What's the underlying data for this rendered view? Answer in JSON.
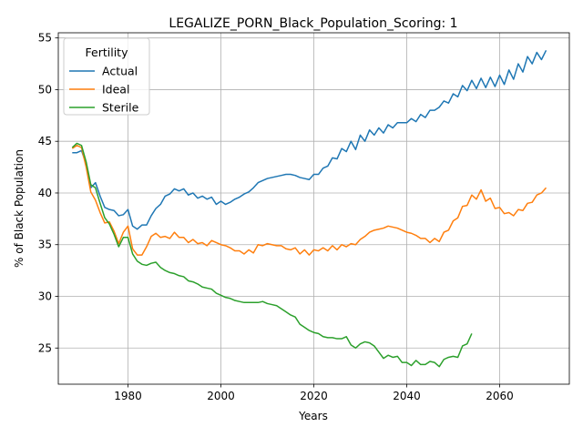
{
  "chart_data": {
    "type": "line",
    "title": "LEGALIZE_PORN_Black_Population_Scoring: 1",
    "xlabel": "Years",
    "ylabel": "% of Black Population",
    "xlim": [
      1965,
      2075
    ],
    "ylim": [
      21.5,
      55.5
    ],
    "xticks": [
      1980,
      2000,
      2020,
      2040,
      2060
    ],
    "yticks": [
      25,
      30,
      35,
      40,
      45,
      50,
      55
    ],
    "grid": true,
    "legend": {
      "title": "Fertility",
      "placement": "top-left"
    },
    "series": [
      {
        "name": "Actual",
        "color": "#1f77b4",
        "x": [
          1968,
          1969,
          1970,
          1971,
          1972,
          1973,
          1974,
          1975,
          1976,
          1977,
          1978,
          1979,
          1980,
          1981,
          1982,
          1983,
          1984,
          1985,
          1986,
          1987,
          1988,
          1989,
          1990,
          1991,
          1992,
          1993,
          1994,
          1995,
          1996,
          1997,
          1998,
          1999,
          2000,
          2001,
          2002,
          2003,
          2004,
          2005,
          2006,
          2007,
          2008,
          2009,
          2010,
          2011,
          2012,
          2013,
          2014,
          2015,
          2016,
          2017,
          2018,
          2019,
          2020,
          2021,
          2022,
          2023,
          2024,
          2025,
          2026,
          2027,
          2028,
          2029,
          2030,
          2031,
          2032,
          2033,
          2034,
          2035,
          2036,
          2037,
          2038,
          2039,
          2040,
          2041,
          2042,
          2043,
          2044,
          2045,
          2046,
          2047,
          2048,
          2049,
          2050,
          2051,
          2052,
          2053,
          2054,
          2055,
          2056,
          2057,
          2058,
          2059,
          2060,
          2061,
          2062,
          2063,
          2064,
          2065,
          2066,
          2067,
          2068,
          2069,
          2070
        ],
        "values": [
          43.9,
          43.9,
          44.1,
          42.8,
          40.5,
          41.0,
          39.7,
          38.6,
          38.4,
          38.3,
          37.8,
          37.9,
          38.4,
          36.8,
          36.5,
          36.9,
          36.9,
          37.8,
          38.5,
          38.9,
          39.7,
          39.9,
          40.4,
          40.2,
          40.4,
          39.8,
          40.0,
          39.5,
          39.7,
          39.4,
          39.6,
          38.9,
          39.2,
          38.9,
          39.1,
          39.4,
          39.6,
          39.9,
          40.1,
          40.5,
          41.0,
          41.2,
          41.4,
          41.5,
          41.6,
          41.7,
          41.8,
          41.8,
          41.7,
          41.5,
          41.4,
          41.3,
          41.8,
          41.8,
          42.4,
          42.6,
          43.4,
          43.3,
          44.3,
          44.0,
          45.0,
          44.2,
          45.6,
          45.0,
          46.1,
          45.6,
          46.3,
          45.8,
          46.6,
          46.3,
          46.8,
          46.8,
          46.8,
          47.2,
          46.9,
          47.6,
          47.3,
          48.0,
          48.0,
          48.3,
          48.9,
          48.7,
          49.6,
          49.3,
          50.4,
          49.9,
          50.9,
          50.1,
          51.1,
          50.2,
          51.2,
          50.3,
          51.4,
          50.5,
          51.9,
          51.0,
          52.5,
          51.7,
          53.2,
          52.5,
          53.6,
          52.9,
          53.8
        ]
      },
      {
        "name": "Ideal",
        "color": "#ff7f0e",
        "x": [
          1968,
          1969,
          1970,
          1971,
          1972,
          1973,
          1974,
          1975,
          1976,
          1977,
          1978,
          1979,
          1980,
          1981,
          1982,
          1983,
          1984,
          1985,
          1986,
          1987,
          1988,
          1989,
          1990,
          1991,
          1992,
          1993,
          1994,
          1995,
          1996,
          1997,
          1998,
          1999,
          2000,
          2001,
          2002,
          2003,
          2004,
          2005,
          2006,
          2007,
          2008,
          2009,
          2010,
          2011,
          2012,
          2013,
          2014,
          2015,
          2016,
          2017,
          2018,
          2019,
          2020,
          2021,
          2022,
          2023,
          2024,
          2025,
          2026,
          2027,
          2028,
          2029,
          2030,
          2031,
          2032,
          2033,
          2034,
          2035,
          2036,
          2037,
          2038,
          2039,
          2040,
          2041,
          2042,
          2043,
          2044,
          2045,
          2046,
          2047,
          2048,
          2049,
          2050,
          2051,
          2052,
          2053,
          2054,
          2055,
          2056,
          2057,
          2058,
          2059,
          2060,
          2061,
          2062,
          2063,
          2064,
          2065,
          2066,
          2067,
          2068,
          2069,
          2070
        ],
        "values": [
          44.3,
          44.6,
          44.4,
          42.5,
          40.1,
          39.3,
          38.1,
          37.1,
          37.2,
          36.3,
          35.1,
          36.2,
          36.8,
          34.6,
          34.0,
          34.0,
          34.8,
          35.8,
          36.1,
          35.7,
          35.8,
          35.6,
          36.2,
          35.7,
          35.7,
          35.2,
          35.5,
          35.1,
          35.2,
          34.9,
          35.4,
          35.2,
          35.0,
          34.9,
          34.7,
          34.4,
          34.4,
          34.1,
          34.5,
          34.2,
          35.0,
          34.9,
          35.1,
          35.0,
          34.9,
          34.9,
          34.6,
          34.5,
          34.7,
          34.1,
          34.5,
          34.0,
          34.5,
          34.4,
          34.7,
          34.4,
          34.9,
          34.5,
          35.0,
          34.8,
          35.1,
          35.0,
          35.5,
          35.8,
          36.2,
          36.4,
          36.5,
          36.6,
          36.8,
          36.7,
          36.6,
          36.4,
          36.2,
          36.1,
          35.9,
          35.6,
          35.6,
          35.2,
          35.6,
          35.3,
          36.2,
          36.4,
          37.3,
          37.6,
          38.7,
          38.8,
          39.8,
          39.4,
          40.3,
          39.2,
          39.5,
          38.5,
          38.6,
          38.0,
          38.1,
          37.8,
          38.4,
          38.3,
          39.0,
          39.1,
          39.8,
          40.0,
          40.5
        ]
      },
      {
        "name": "Sterile",
        "color": "#2ca02c",
        "x": [
          1968,
          1969,
          1970,
          1971,
          1972,
          1973,
          1974,
          1975,
          1976,
          1977,
          1978,
          1979,
          1980,
          1981,
          1982,
          1983,
          1984,
          1985,
          1986,
          1987,
          1988,
          1989,
          1990,
          1991,
          1992,
          1993,
          1994,
          1995,
          1996,
          1997,
          1998,
          1999,
          2000,
          2001,
          2002,
          2003,
          2004,
          2005,
          2006,
          2007,
          2008,
          2009,
          2010,
          2011,
          2012,
          2013,
          2014,
          2015,
          2016,
          2017,
          2018,
          2019,
          2020,
          2021,
          2022,
          2023,
          2024,
          2025,
          2026,
          2027,
          2028,
          2029,
          2030,
          2031,
          2032,
          2033,
          2034,
          2035,
          2036,
          2037,
          2038,
          2039,
          2040,
          2041,
          2042,
          2043,
          2044,
          2045,
          2046,
          2047,
          2048,
          2049,
          2050,
          2051,
          2052,
          2053,
          2054
        ],
        "values": [
          44.4,
          44.8,
          44.6,
          43.0,
          40.8,
          40.5,
          39.0,
          37.6,
          37.0,
          36.0,
          34.8,
          35.7,
          35.7,
          34.1,
          33.4,
          33.1,
          33.0,
          33.2,
          33.3,
          32.8,
          32.5,
          32.3,
          32.2,
          32.0,
          31.9,
          31.5,
          31.4,
          31.2,
          30.9,
          30.8,
          30.7,
          30.3,
          30.1,
          29.9,
          29.8,
          29.6,
          29.5,
          29.4,
          29.4,
          29.4,
          29.4,
          29.5,
          29.3,
          29.2,
          29.1,
          28.8,
          28.5,
          28.2,
          28.0,
          27.3,
          27.0,
          26.7,
          26.5,
          26.4,
          26.1,
          26.0,
          26.0,
          25.9,
          25.9,
          26.1,
          25.3,
          25.0,
          25.4,
          25.6,
          25.5,
          25.2,
          24.6,
          24.0,
          24.3,
          24.1,
          24.2,
          23.6,
          23.6,
          23.3,
          23.8,
          23.4,
          23.4,
          23.7,
          23.6,
          23.2,
          23.9,
          24.1,
          24.2,
          24.1,
          25.2,
          25.4,
          26.4
        ]
      }
    ]
  }
}
